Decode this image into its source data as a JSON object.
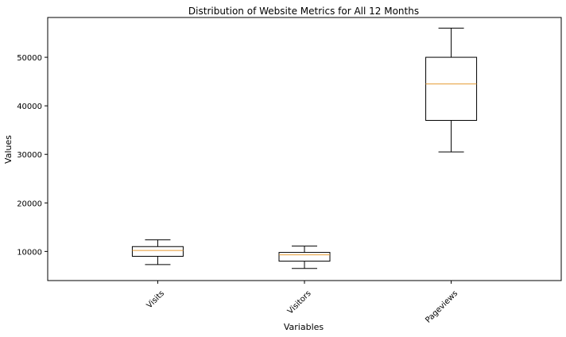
{
  "chart_data": {
    "type": "boxplot",
    "title": "Distribution of Website Metrics for All 12 Months",
    "xlabel": "Variables",
    "ylabel": "Values",
    "ylim": [
      4000,
      58200
    ],
    "yticks": [
      10000,
      20000,
      30000,
      40000,
      50000
    ],
    "ytick_labels": [
      "10000",
      "20000",
      "30000",
      "40000",
      "50000"
    ],
    "grid": false,
    "categories": [
      "Visits",
      "Visitors",
      "Pageviews"
    ],
    "boxes": [
      {
        "name": "Visits",
        "min": 7300,
        "q1": 9000,
        "median": 10200,
        "q3": 11000,
        "max": 12400
      },
      {
        "name": "Visitors",
        "min": 6500,
        "q1": 8000,
        "median": 9300,
        "q3": 9800,
        "max": 11100
      },
      {
        "name": "Pageviews",
        "min": 30500,
        "q1": 37000,
        "median": 44500,
        "q3": 50000,
        "max": 56000
      }
    ],
    "colors": {
      "box": "#000000",
      "median": "#e69b33",
      "axes": "#000000",
      "background": "#ffffff"
    }
  }
}
